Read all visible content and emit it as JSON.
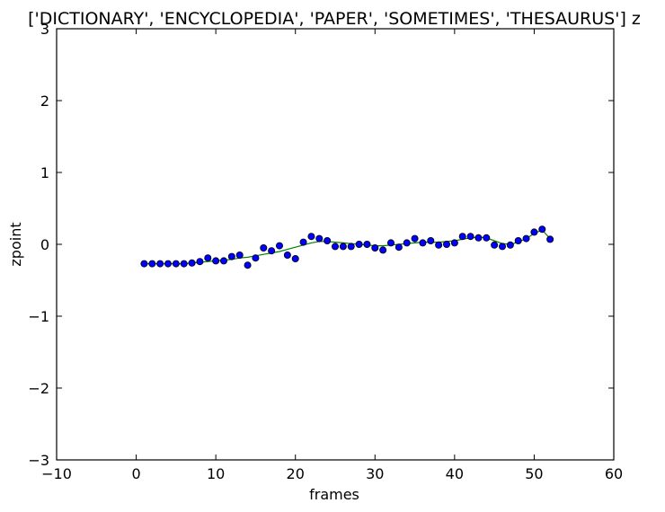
{
  "chart_data": {
    "type": "scatter",
    "title": "['DICTIONARY', 'ENCYCLOPEDIA', 'PAPER', 'SOMETIMES', 'THESAURUS'] z",
    "xlabel": "frames",
    "ylabel": "zpoint",
    "xlim": [
      -10,
      60
    ],
    "ylim": [
      -3,
      3
    ],
    "xticks": [
      -10,
      0,
      10,
      20,
      30,
      40,
      50,
      60
    ],
    "yticks": [
      -3,
      -2,
      -1,
      0,
      1,
      2,
      3
    ],
    "grid": false,
    "legend": "none",
    "series": [
      {
        "kind": "points",
        "color": "#0000ff",
        "edge_color": "#000000",
        "x": [
          1,
          2,
          3,
          4,
          5,
          6,
          7,
          8,
          9,
          10,
          11,
          12,
          13,
          14,
          15,
          16,
          17,
          18,
          19,
          20,
          21,
          22,
          23,
          24,
          25,
          26,
          27,
          28,
          29,
          30,
          31,
          32,
          33,
          34,
          35,
          36,
          37,
          38,
          39,
          40,
          41,
          42,
          43,
          44,
          45,
          46,
          47,
          48,
          49,
          50,
          51,
          52
        ],
        "y": [
          -0.27,
          -0.27,
          -0.27,
          -0.27,
          -0.27,
          -0.27,
          -0.26,
          -0.24,
          -0.19,
          -0.23,
          -0.23,
          -0.17,
          -0.15,
          -0.29,
          -0.19,
          -0.05,
          -0.09,
          -0.02,
          -0.15,
          -0.2,
          0.03,
          0.11,
          0.08,
          0.05,
          -0.03,
          -0.03,
          -0.03,
          0.0,
          0.0,
          -0.05,
          -0.08,
          0.02,
          -0.04,
          0.02,
          0.08,
          0.02,
          0.05,
          -0.01,
          0.0,
          0.02,
          0.11,
          0.11,
          0.09,
          0.09,
          -0.01,
          -0.03,
          -0.01,
          0.05,
          0.08,
          0.17,
          0.21,
          0.07
        ]
      },
      {
        "kind": "line",
        "color": "#008000",
        "x": [
          1,
          2,
          3,
          4,
          5,
          6,
          7,
          8,
          9,
          10,
          11,
          12,
          13,
          14,
          15,
          16,
          17,
          18,
          19,
          20,
          21,
          22,
          23,
          24,
          25,
          26,
          27,
          28,
          29,
          30,
          31,
          32,
          33,
          34,
          35,
          36,
          37,
          38,
          39,
          40,
          41,
          42,
          43,
          44,
          45,
          46,
          47,
          48,
          49,
          50,
          51,
          52
        ],
        "y": [
          -0.27,
          -0.27,
          -0.27,
          -0.27,
          -0.27,
          -0.27,
          -0.26,
          -0.25,
          -0.24,
          -0.23,
          -0.22,
          -0.21,
          -0.19,
          -0.18,
          -0.16,
          -0.14,
          -0.12,
          -0.1,
          -0.07,
          -0.04,
          -0.01,
          0.02,
          0.04,
          0.04,
          0.03,
          0.02,
          0.01,
          0.0,
          -0.01,
          -0.02,
          -0.02,
          -0.01,
          0.0,
          0.01,
          0.02,
          0.03,
          0.03,
          0.03,
          0.04,
          0.05,
          0.07,
          0.09,
          0.1,
          0.09,
          0.05,
          0.01,
          0.0,
          0.03,
          0.08,
          0.15,
          0.2,
          0.08
        ]
      }
    ]
  }
}
